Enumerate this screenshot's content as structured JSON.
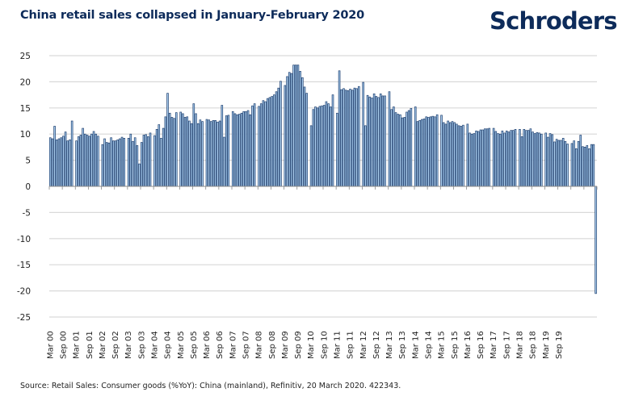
{
  "header": {
    "title": "China retail sales collapsed in January-February 2020",
    "logo": "Schroders"
  },
  "footer": {
    "source": "Source: Retail Sales: Consumer goods (%YoY): China (mainland), Refinitiv, 20 March 2020. 422343."
  },
  "colors": {
    "title": "#0d2b5a",
    "bar_fill": "#a9cdee",
    "bar_edge": "#1d3e6e",
    "grid": "#d9d9d9"
  },
  "chart_data": {
    "type": "bar",
    "title": "China retail sales collapsed in January-February 2020",
    "xlabel": "",
    "ylabel": "",
    "ylim": [
      -25,
      25
    ],
    "yticks": [
      25,
      20,
      15,
      10,
      5,
      0,
      -5,
      -10,
      -15,
      -20,
      -25
    ],
    "grid": true,
    "legend": "none",
    "start_month": "Mar 00",
    "end_month": "Feb 20",
    "frequency": "monthly",
    "xtick_labels": [
      "Mar 00",
      "Sep 00",
      "Mar 01",
      "Sep 01",
      "Mar 02",
      "Sep 02",
      "Mar 03",
      "Sep 03",
      "Mar 04",
      "Sep 04",
      "Mar 05",
      "Sep 05",
      "Mar 06",
      "Sep 06",
      "Mar 07",
      "Sep 07",
      "Mar 08",
      "Sep 08",
      "Mar 09",
      "Sep 09",
      "Mar 10",
      "Sep 10",
      "Mar 11",
      "Sep 11",
      "Mar 12",
      "Sep 12",
      "Mar 13",
      "Sep 13",
      "Mar 14",
      "Sep 14",
      "Mar 15",
      "Sep 15",
      "Mar 16",
      "Sep 16",
      "Mar 17",
      "Sep 17",
      "Mar 18",
      "Sep 18",
      "Mar 19",
      "Sep 19"
    ],
    "values": [
      9.3,
      9.1,
      11.5,
      8.9,
      9.1,
      9.3,
      9.6,
      10.4,
      8.7,
      8.9,
      12.5,
      null,
      8.7,
      9.5,
      9.8,
      11.1,
      10.0,
      9.8,
      9.6,
      10.0,
      10.5,
      10.0,
      9.6,
      null,
      8.0,
      9.1,
      8.4,
      8.3,
      9.3,
      8.7,
      8.7,
      8.9,
      9.1,
      9.4,
      9.2,
      null,
      9.2,
      10.0,
      8.6,
      9.3,
      7.8,
      4.3,
      8.4,
      9.8,
      9.9,
      9.5,
      10.2,
      null,
      9.7,
      10.9,
      11.8,
      9.2,
      11.1,
      13.3,
      17.8,
      14.0,
      13.2,
      13.0,
      14.1,
      null,
      14.2,
      13.9,
      13.2,
      13.3,
      12.5,
      12.0,
      15.8,
      13.9,
      12.0,
      12.7,
      12.4,
      null,
      12.8,
      12.7,
      12.4,
      12.6,
      12.6,
      12.3,
      12.5,
      15.5,
      9.4,
      13.5,
      13.6,
      null,
      14.3,
      13.9,
      13.7,
      13.8,
      14.0,
      14.3,
      14.3,
      14.5,
      13.7,
      15.4,
      15.8,
      null,
      15.3,
      15.8,
      16.4,
      16.2,
      16.8,
      17.0,
      17.2,
      17.5,
      18.1,
      18.8,
      20.1,
      null,
      19.3,
      21.0,
      21.8,
      21.6,
      23.2,
      23.2,
      23.2,
      22.0,
      20.8,
      19.0,
      17.8,
      null,
      11.6,
      14.7,
      15.2,
      15.0,
      15.3,
      15.4,
      15.5,
      16.2,
      15.8,
      15.2,
      17.5,
      null,
      14.0,
      22.1,
      18.5,
      18.7,
      18.4,
      18.3,
      18.6,
      18.4,
      18.8,
      18.7,
      19.1,
      null,
      19.9,
      11.6,
      17.4,
      17.1,
      16.9,
      17.7,
      17.2,
      17.0,
      17.7,
      17.3,
      17.3,
      null,
      18.1,
      14.7,
      15.2,
      14.1,
      13.8,
      13.7,
      13.1,
      13.2,
      14.2,
      14.5,
      14.9,
      null,
      15.2,
      12.4,
      12.6,
      12.8,
      12.9,
      13.3,
      13.2,
      13.3,
      13.4,
      13.3,
      13.7,
      null,
      13.6,
      12.2,
      11.9,
      12.5,
      12.2,
      12.4,
      12.2,
      11.9,
      11.6,
      11.5,
      11.7,
      null,
      11.9,
      10.2,
      10.0,
      10.1,
      10.6,
      10.5,
      10.8,
      10.8,
      11.0,
      11.0,
      11.1,
      null,
      11.1,
      10.5,
      10.1,
      10.0,
      10.6,
      10.2,
      10.6,
      10.4,
      10.7,
      10.7,
      10.9,
      null,
      10.9,
      9.5,
      10.9,
      10.7,
      10.7,
      11.0,
      10.4,
      10.1,
      10.3,
      10.2,
      10.0,
      null,
      10.2,
      9.4,
      10.1,
      9.9,
      8.5,
      9.0,
      8.8,
      8.8,
      9.2,
      8.6,
      8.1,
      null,
      8.2,
      8.7,
      7.2,
      8.6,
      9.8,
      7.6,
      7.5,
      7.8,
      7.2,
      8.0,
      8.0,
      -20.5
    ]
  }
}
